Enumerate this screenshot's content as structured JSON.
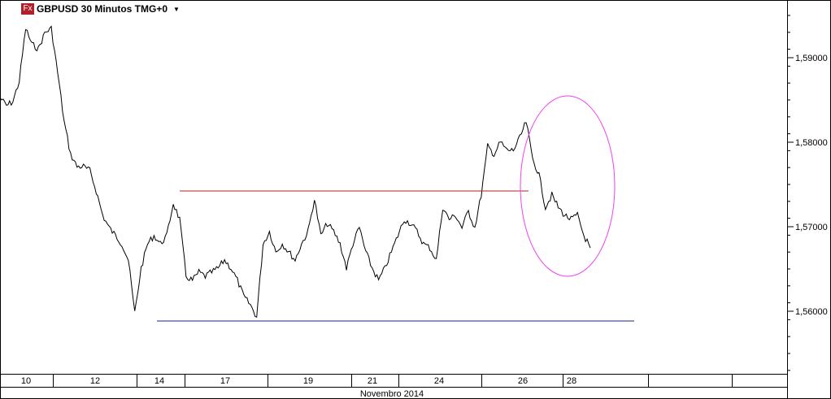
{
  "header": {
    "symbol_badge": "Fx",
    "title": "GBPUSD 30 Minutos TMG+0",
    "dropdown_icon": "caret-down-icon"
  },
  "chart_data": {
    "type": "line",
    "title": "GBPUSD 30 Minutos TMG+0",
    "ylim": [
      1.5535,
      1.5965
    ],
    "y_ticks": [
      "1,59000",
      "1,58000",
      "1,57000",
      "1,56000"
    ],
    "y_tick_values": [
      1.59,
      1.58,
      1.57,
      1.56
    ],
    "x_tick_labels": [
      "10",
      "12",
      "14",
      "17",
      "19",
      "21",
      "24",
      "26",
      "28"
    ],
    "x_axis_label": "Novembro 2014",
    "grid": false,
    "series": [
      {
        "color": "#000000",
        "values": [
          1.58529,
          1.58433,
          1.58481,
          1.58721,
          1.59346,
          1.59154,
          1.59106,
          1.59298,
          1.59346,
          1.58817,
          1.5824,
          1.57856,
          1.57712,
          1.57712,
          1.57663,
          1.57423,
          1.57135,
          1.5699,
          1.56894,
          1.56798,
          1.56606,
          1.55981,
          1.5651,
          1.56798,
          1.56894,
          1.56798,
          1.56894,
          1.57279,
          1.57087,
          1.56413,
          1.56365,
          1.56462,
          1.56413,
          1.56462,
          1.5651,
          1.56606,
          1.5651,
          1.56365,
          1.56173,
          1.56077,
          1.55933,
          1.56798,
          1.56942,
          1.56702,
          1.56798,
          1.56702,
          1.56606,
          1.56798,
          1.56942,
          1.57327,
          1.56894,
          1.57038,
          1.56942,
          1.56798,
          1.5651,
          1.56798,
          1.5699,
          1.56702,
          1.5651,
          1.56365,
          1.5651,
          1.56702,
          1.56894,
          1.57087,
          1.57038,
          1.56942,
          1.56798,
          1.5675,
          1.56606,
          1.57231,
          1.57087,
          1.57135,
          1.5699,
          1.57183,
          1.5699,
          1.57375,
          1.57952,
          1.57856,
          1.58,
          1.57904,
          1.57904,
          1.58048,
          1.5824,
          1.57808,
          1.57615,
          1.57231,
          1.57375,
          1.57231,
          1.57135,
          1.57087,
          1.57135,
          1.56894,
          1.5675
        ]
      }
    ],
    "annotations": {
      "resistance_line": {
        "price": 1.57423,
        "color": "#b22222"
      },
      "support_line": {
        "price": 1.55885,
        "color": "#1a237e"
      },
      "ellipse": {
        "color": "#ee44ee"
      }
    }
  }
}
